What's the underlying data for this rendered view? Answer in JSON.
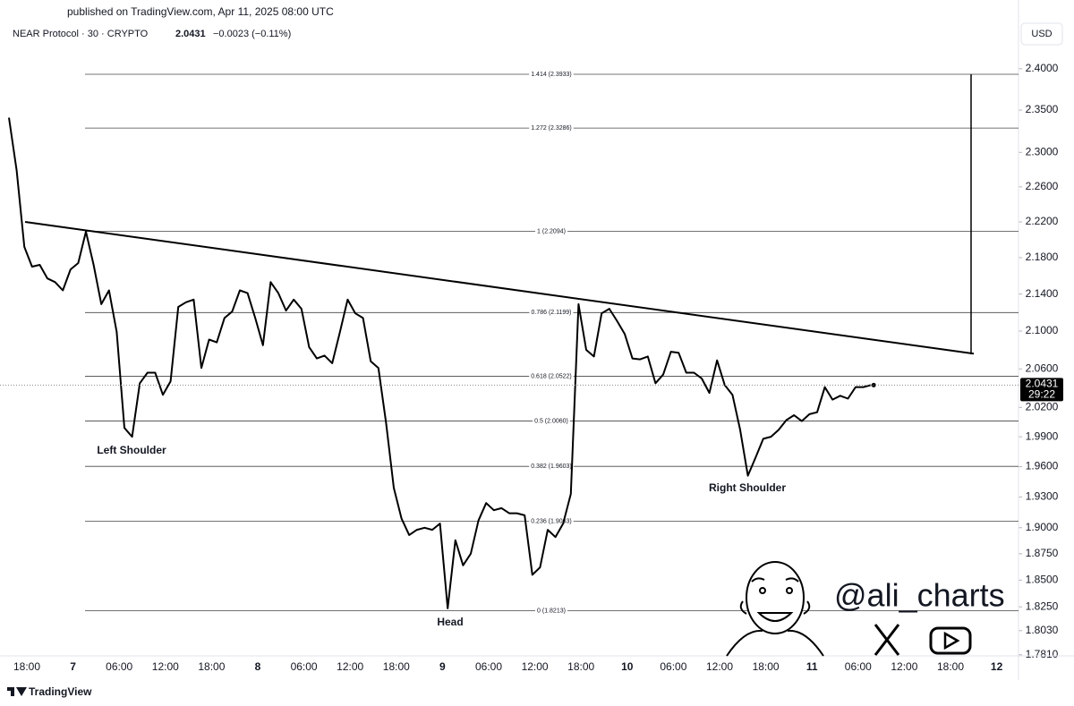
{
  "header": {
    "published": "published on TradingView.com, Apr 11, 2025 08:00 UTC",
    "symbol": "NEAR Protocol · 30 · CRYPTO",
    "price": "2.0431",
    "change": "−0.0023 (−0.11%)",
    "currency": "USD"
  },
  "chart_data": {
    "type": "line",
    "log_scale": true,
    "color": "#000000",
    "ylim": [
      1.78,
      2.424
    ],
    "yticks": [
      {
        "value": 2.4,
        "label": "2.4000"
      },
      {
        "value": 2.35,
        "label": "2.3500"
      },
      {
        "value": 2.3,
        "label": "2.3000"
      },
      {
        "value": 2.26,
        "label": "2.2600"
      },
      {
        "value": 2.22,
        "label": "2.2200"
      },
      {
        "value": 2.18,
        "label": "2.1800"
      },
      {
        "value": 2.14,
        "label": "2.1400"
      },
      {
        "value": 2.1,
        "label": "2.1000"
      },
      {
        "value": 2.06,
        "label": "2.0600"
      },
      {
        "value": 2.02,
        "label": "2.0200"
      },
      {
        "value": 1.99,
        "label": "1.9900"
      },
      {
        "value": 1.96,
        "label": "1.9600"
      },
      {
        "value": 1.93,
        "label": "1.9300"
      },
      {
        "value": 1.9,
        "label": "1.9000"
      },
      {
        "value": 1.875,
        "label": "1.8750"
      },
      {
        "value": 1.85,
        "label": "1.8500"
      },
      {
        "value": 1.825,
        "label": "1.8250"
      },
      {
        "value": 1.803,
        "label": "1.8030"
      },
      {
        "value": 1.781,
        "label": "1.7810"
      }
    ],
    "xticks": [
      "18:00",
      "7",
      "06:00",
      "12:00",
      "18:00",
      "8",
      "06:00",
      "12:00",
      "18:00",
      "9",
      "06:00",
      "12:00",
      "18:00",
      "10",
      "06:00",
      "12:00",
      "18:00",
      "11",
      "06:00",
      "12:00",
      "18:00",
      "12"
    ],
    "values": [
      2.341,
      2.279,
      2.192,
      2.17,
      2.172,
      2.157,
      2.153,
      2.144,
      2.167,
      2.174,
      2.209,
      2.172,
      2.129,
      2.144,
      2.099,
      1.999,
      1.99,
      2.045,
      2.056,
      2.056,
      2.033,
      2.047,
      2.126,
      2.131,
      2.134,
      2.061,
      2.091,
      2.088,
      2.114,
      2.121,
      2.144,
      2.141,
      2.114,
      2.085,
      2.153,
      2.141,
      2.122,
      2.134,
      2.124,
      2.083,
      2.071,
      2.074,
      2.066,
      2.099,
      2.134,
      2.119,
      2.114,
      2.068,
      2.061,
      2.004,
      1.939,
      1.909,
      1.893,
      1.898,
      1.9,
      1.898,
      1.904,
      1.8236,
      1.888,
      1.864,
      1.875,
      1.907,
      1.924,
      1.917,
      1.919,
      1.914,
      1.914,
      1.912,
      1.855,
      1.862,
      1.898,
      1.891,
      1.904,
      1.933,
      2.129,
      2.08,
      2.073,
      2.119,
      2.124,
      2.111,
      2.097,
      2.071,
      2.07,
      2.073,
      2.045,
      2.054,
      2.078,
      2.077,
      2.056,
      2.056,
      2.05,
      2.035,
      2.069,
      2.043,
      2.033,
      1.997,
      1.951,
      1.969,
      1.988,
      1.99,
      1.997,
      2.007,
      2.012,
      2.006,
      2.013,
      2.015,
      2.041,
      2.028,
      2.032,
      2.029,
      2.041,
      2.041,
      2.0431
    ],
    "fib_levels": [
      {
        "value": 2.3933,
        "label": "1.414 (2.3933)"
      },
      {
        "value": 2.3286,
        "label": "1.272 (2.3286)"
      },
      {
        "value": 2.2094,
        "label": "1 (2.2094)"
      },
      {
        "value": 2.1199,
        "label": "0.786 (2.1199)"
      },
      {
        "value": 2.0522,
        "label": "0.618 (2.0522)"
      },
      {
        "value": 2.006,
        "label": "0.5 (2.0060)"
      },
      {
        "value": 1.9603,
        "label": "0.382 (1.9603)"
      },
      {
        "value": 1.9063,
        "label": "0.236 (1.9063)"
      },
      {
        "value": 1.8213,
        "label": "0 (1.8213)"
      }
    ],
    "trendline": [
      2.22,
      2.076
    ],
    "target_line": [
      2.076,
      2.3933
    ],
    "last_price": {
      "value": 2.0431,
      "label": "2.0431",
      "countdown": "29:22"
    },
    "annotations": [
      "Left Shoulder",
      "Head",
      "Right Shoulder"
    ],
    "watermark": "@ali_charts"
  },
  "footer": {
    "brand": "TradingView"
  }
}
